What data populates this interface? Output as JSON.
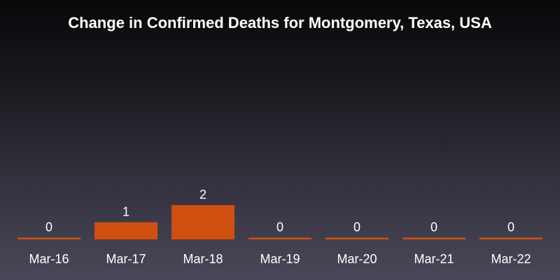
{
  "chart_data": {
    "type": "bar",
    "title": "Change in Confirmed Deaths for Montgomery, Texas, USA",
    "categories": [
      "Mar-16",
      "Mar-17",
      "Mar-18",
      "Mar-19",
      "Mar-20",
      "Mar-21",
      "Mar-22"
    ],
    "values": [
      0,
      1,
      2,
      0,
      0,
      0,
      0
    ],
    "xlabel": "",
    "ylabel": "",
    "ylim": [
      0,
      2
    ],
    "grid": false,
    "bar_color": "#cf4f10",
    "background_color": "#1d1c22"
  }
}
